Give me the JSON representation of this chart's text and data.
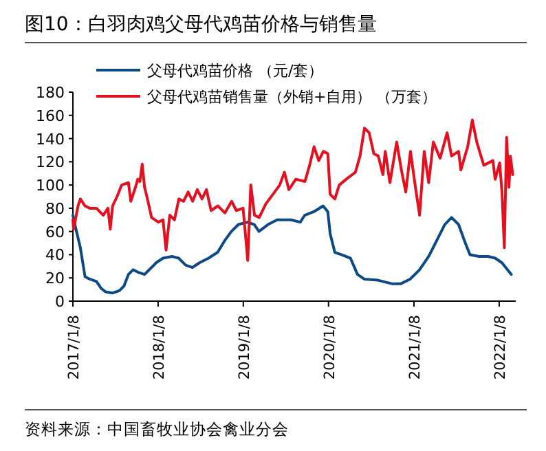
{
  "chart_data": {
    "type": "line",
    "title": "图10：白羽肉鸡父母代鸡苗价格与销售量",
    "annotations": [
      "资料来源：中国畜牧业协会禽业分会"
    ],
    "ylim": [
      0,
      180
    ],
    "yticks": [
      0,
      20,
      40,
      60,
      80,
      100,
      120,
      140,
      160,
      180
    ],
    "xlim": [
      "2017-01-08",
      "2022-03-20"
    ],
    "xticks": [
      {
        "value": "2017-01-08",
        "label": "2017/1/8"
      },
      {
        "value": "2018-01-08",
        "label": "2018/1/8"
      },
      {
        "value": "2019-01-08",
        "label": "2019/1/8"
      },
      {
        "value": "2020-01-08",
        "label": "2020/1/8"
      },
      {
        "value": "2021-01-08",
        "label": "2021/1/8"
      },
      {
        "value": "2022-01-08",
        "label": "2022/1/8"
      }
    ],
    "grid": false,
    "legend": "top left",
    "marker": "none",
    "line_style": "solid",
    "series": [
      {
        "name": "父母代鸡苗价格 （元/套）",
        "color": "#0d4a85",
        "x": [
          "2017-01-08",
          "2017-01-21",
          "2017-02-09",
          "2017-03-01",
          "2017-03-21",
          "2017-04-19",
          "2017-05-09",
          "2017-05-28",
          "2017-06-27",
          "2017-07-26",
          "2017-08-15",
          "2017-09-03",
          "2017-09-23",
          "2017-10-13",
          "2017-11-11",
          "2017-12-11",
          "2017-12-30",
          "2018-01-29",
          "2018-03-09",
          "2018-04-06",
          "2018-05-06",
          "2018-06-04",
          "2018-07-04",
          "2018-08-12",
          "2018-09-20",
          "2018-10-20",
          "2018-11-18",
          "2018-12-18",
          "2019-01-26",
          "2019-02-24",
          "2019-03-16",
          "2019-04-24",
          "2019-06-02",
          "2019-07-31",
          "2019-09-09",
          "2019-09-28",
          "2019-11-06",
          "2019-12-16",
          "2020-01-05",
          "2020-01-15",
          "2020-02-04",
          "2020-03-03",
          "2020-04-11",
          "2020-05-11",
          "2020-06-09",
          "2020-08-07",
          "2020-10-05",
          "2020-11-13",
          "2020-12-23",
          "2021-02-01",
          "2021-03-12",
          "2021-04-20",
          "2021-05-20",
          "2021-06-18",
          "2021-07-18",
          "2021-08-16",
          "2021-09-05",
          "2021-10-14",
          "2021-11-22",
          "2021-12-22",
          "2022-01-20",
          "2022-03-01"
        ],
        "values": [
          74,
          62,
          46,
          21,
          19,
          17,
          11,
          8,
          7,
          9,
          13,
          23,
          27,
          25,
          23,
          29,
          33,
          37,
          38.5,
          37,
          31,
          29,
          33,
          37,
          42,
          52,
          60,
          66,
          68,
          66,
          60,
          66,
          70,
          70,
          68,
          74,
          77,
          82,
          77,
          58,
          42,
          40,
          37,
          23,
          19,
          18,
          15,
          15,
          19,
          27,
          38.5,
          54,
          66,
          72,
          66,
          50,
          40,
          38.5,
          38.5,
          37,
          33,
          23
        ]
      },
      {
        "name": "父母代鸡苗销售量（外销+自用） （万套）",
        "color": "#e3101f",
        "x": [
          "2017-01-08",
          "2017-01-11",
          "2017-01-30",
          "2017-02-09",
          "2017-03-01",
          "2017-03-21",
          "2017-04-19",
          "2017-05-18",
          "2017-06-07",
          "2017-06-17",
          "2017-06-27",
          "2017-07-16",
          "2017-08-05",
          "2017-09-03",
          "2017-09-13",
          "2017-10-03",
          "2017-10-13",
          "2017-10-22",
          "2017-11-01",
          "2017-11-11",
          "2017-11-21",
          "2017-12-11",
          "2018-01-09",
          "2018-01-29",
          "2018-02-11",
          "2018-02-27",
          "2018-03-19",
          "2018-04-07",
          "2018-04-27",
          "2018-05-17",
          "2018-06-05",
          "2018-06-25",
          "2018-07-15",
          "2018-08-03",
          "2018-08-23",
          "2018-09-21",
          "2018-10-21",
          "2018-11-19",
          "2018-12-09",
          "2019-01-07",
          "2019-01-27",
          "2019-02-09",
          "2019-02-25",
          "2019-03-17",
          "2019-04-15",
          "2019-05-15",
          "2019-06-13",
          "2019-07-03",
          "2019-07-22",
          "2019-08-21",
          "2019-09-29",
          "2019-10-19",
          "2019-11-07",
          "2019-11-27",
          "2019-12-17",
          "2020-01-05",
          "2020-01-15",
          "2020-02-04",
          "2020-02-23",
          "2020-03-24",
          "2020-05-02",
          "2020-05-22",
          "2020-06-10",
          "2020-06-30",
          "2020-07-20",
          "2020-08-08",
          "2020-08-28",
          "2020-09-07",
          "2020-09-27",
          "2020-10-26",
          "2020-11-15",
          "2020-12-04",
          "2020-12-24",
          "2021-01-13",
          "2021-02-01",
          "2021-02-21",
          "2021-03-12",
          "2021-04-01",
          "2021-04-30",
          "2021-05-30",
          "2021-06-18",
          "2021-07-18",
          "2021-07-28",
          "2021-08-26",
          "2021-09-15",
          "2021-10-04",
          "2021-11-03",
          "2021-12-12",
          "2021-12-22",
          "2022-01-10",
          "2022-01-20",
          "2022-01-30",
          "2022-02-09",
          "2022-02-19",
          "2022-02-25",
          "2022-03-07"
        ],
        "values": [
          70,
          62,
          82,
          88,
          82,
          80,
          80,
          74,
          80,
          62,
          82,
          90,
          100,
          102,
          86,
          98,
          105,
          103,
          118,
          98,
          90,
          72,
          68,
          70,
          44,
          74,
          70,
          88,
          86,
          94,
          86,
          96,
          88,
          96,
          78,
          82,
          76,
          86,
          78,
          80,
          35,
          100,
          74,
          72,
          84,
          92,
          100,
          111,
          96,
          105,
          103,
          117,
          133,
          121,
          129,
          127,
          92,
          88,
          100,
          105,
          111,
          125,
          149,
          145,
          127,
          125,
          109,
          129,
          102,
          137,
          113,
          94,
          129,
          100,
          74,
          129,
          102,
          137,
          123,
          145,
          125,
          129,
          113,
          133,
          156,
          137,
          117,
          121,
          105,
          119,
          94,
          46,
          141,
          98,
          125,
          109
        ]
      }
    ]
  }
}
